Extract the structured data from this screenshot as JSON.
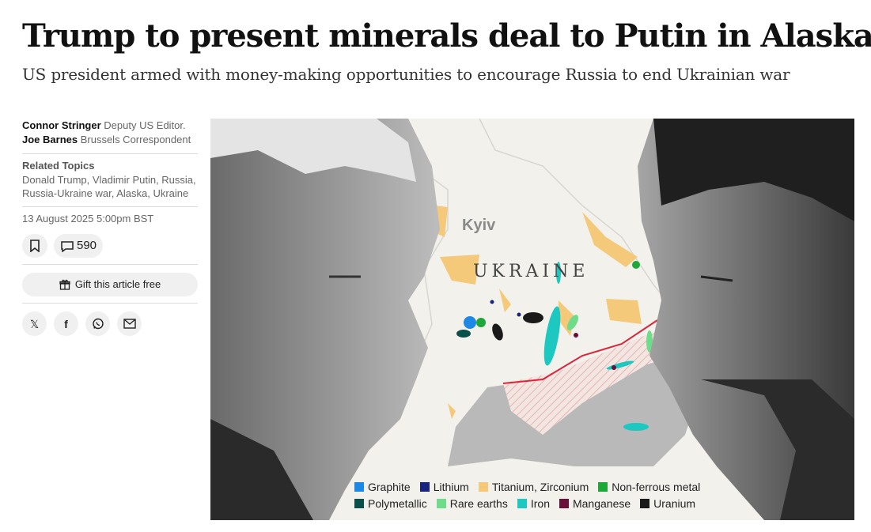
{
  "article": {
    "headline": "Trump to present minerals deal to Putin in Alaska",
    "standfirst": "US president armed with money-making opportunities to encourage Russia to end Ukrainian war"
  },
  "authors": [
    {
      "name": "Connor Stringer",
      "role": "Deputy US Editor."
    },
    {
      "name": "Joe Barnes",
      "role": "Brussels Correspondent"
    }
  ],
  "related": {
    "title": "Related Topics",
    "topics": "Donald Trump, Vladimir Putin, Russia, Russia-Ukraine war, Alaska, Ukraine"
  },
  "date": "13 August 2025 5:00pm BST",
  "actions": {
    "comments_count": "590",
    "gift_label": "Gift this article free",
    "bookmark_icon": "bookmark-icon",
    "comment_icon": "comment-icon",
    "gift_icon": "gift-icon"
  },
  "share": [
    "x-icon",
    "facebook-icon",
    "whatsapp-icon",
    "email-icon"
  ],
  "map": {
    "city_label": "Kyiv",
    "country_label": "UKRAINE",
    "legend": [
      [
        {
          "label": "Graphite",
          "color": "#1e88e5"
        },
        {
          "label": "Lithium",
          "color": "#1a237e"
        },
        {
          "label": "Titanium, Zirconium",
          "color": "#f5c97a"
        },
        {
          "label": "Non-ferrous metal",
          "color": "#1fa83a"
        }
      ],
      [
        {
          "label": "Polymetallic",
          "color": "#0b4f4a"
        },
        {
          "label": "Rare earths",
          "color": "#6fdc8c"
        },
        {
          "label": "Iron",
          "color": "#1cc8c0"
        },
        {
          "label": "Manganese",
          "color": "#6a0f3a"
        },
        {
          "label": "Uranium",
          "color": "#1a1a1a"
        }
      ]
    ]
  }
}
